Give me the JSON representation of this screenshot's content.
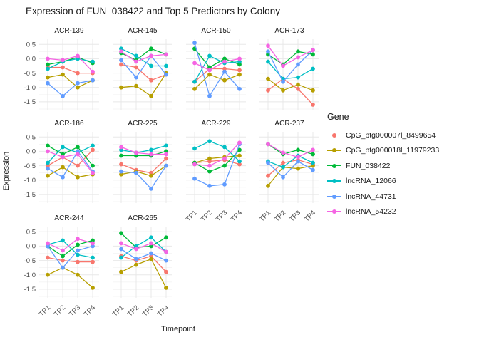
{
  "page": {
    "background": "#ffffff"
  },
  "chart_data": {
    "type": "line",
    "title": "Expression of FUN_038422 and Top 5 Predictors by Colony",
    "xlabel": "Timepoint",
    "ylabel": "Expression",
    "legend_title": "Gene",
    "legend_position": "right",
    "grid": true,
    "x": [
      "TP1",
      "TP2",
      "TP3",
      "TP4"
    ],
    "ytick_labels": [
      "0.5",
      "0.0",
      "-0.5",
      "-1.0",
      "-1.5"
    ],
    "ytick_values": [
      0.5,
      0.0,
      -0.5,
      -1.0,
      -1.5
    ],
    "ylim": [
      -1.8,
      0.68
    ],
    "genes": [
      {
        "name": "CpG_ptg000007l_8499654",
        "color": "#F8766D"
      },
      {
        "name": "CpG_ptg000018l_11979233",
        "color": "#B79F00"
      },
      {
        "name": "FUN_038422",
        "color": "#00BA38"
      },
      {
        "name": "lncRNA_12066",
        "color": "#00BFC4"
      },
      {
        "name": "lncRNA_44731",
        "color": "#619CFF"
      },
      {
        "name": "lncRNA_54232",
        "color": "#F564E3"
      }
    ],
    "facets": [
      {
        "colony": "ACR-139",
        "values": [
          [
            -0.3,
            -0.3,
            -0.5,
            -0.5
          ],
          [
            -0.65,
            -0.55,
            -1.0,
            -0.75
          ],
          [
            -0.2,
            -0.1,
            0.05,
            -0.15
          ],
          [
            -0.35,
            -0.1,
            0.0,
            -0.1
          ],
          [
            -0.85,
            -1.3,
            -0.85,
            -0.75
          ],
          [
            0.0,
            -0.05,
            0.1,
            -0.45
          ]
        ]
      },
      {
        "colony": "ACR-145",
        "values": [
          [
            -0.2,
            -0.3,
            -0.75,
            -0.55
          ],
          [
            -1.0,
            -0.95,
            -1.3,
            -0.5
          ],
          [
            0.2,
            -0.05,
            0.35,
            0.15
          ],
          [
            0.35,
            0.1,
            -0.25,
            -0.25
          ],
          [
            -0.05,
            -0.65,
            0.1,
            -0.55
          ],
          [
            0.25,
            -0.1,
            0.1,
            0.15
          ]
        ]
      },
      {
        "colony": "ACR-150",
        "values": [
          [
            -0.8,
            -0.35,
            -0.35,
            -0.4
          ],
          [
            -1.05,
            -0.55,
            -0.75,
            -0.55
          ],
          [
            0.35,
            -0.3,
            0.0,
            -0.2
          ],
          [
            -0.8,
            0.1,
            -0.15,
            -0.1
          ],
          [
            0.55,
            -1.3,
            -0.45,
            -1.05
          ],
          [
            -0.15,
            -0.4,
            -0.1,
            0.0
          ]
        ]
      },
      {
        "colony": "ACR-173",
        "values": [
          [
            -1.1,
            -0.7,
            -1.05,
            -1.6
          ],
          [
            -0.7,
            -1.1,
            -0.9,
            -1.1
          ],
          [
            0.15,
            -0.2,
            0.25,
            0.15
          ],
          [
            -0.1,
            -0.7,
            -0.65,
            -0.35
          ],
          [
            0.25,
            -0.8,
            -0.2,
            0.3
          ],
          [
            0.45,
            -0.25,
            0.05,
            0.3
          ]
        ]
      },
      {
        "colony": "ACR-186",
        "values": [
          [
            -0.5,
            -0.2,
            -0.5,
            0.05
          ],
          [
            -0.85,
            -0.55,
            -0.9,
            -0.8
          ],
          [
            0.2,
            -0.1,
            0.15,
            -0.5
          ],
          [
            -0.4,
            0.15,
            -0.05,
            0.2
          ],
          [
            -0.6,
            -0.9,
            0.0,
            -0.7
          ],
          [
            0.0,
            -0.2,
            -0.1,
            -0.75
          ]
        ]
      },
      {
        "colony": "ACR-225",
        "values": [
          [
            -0.45,
            -0.65,
            -0.75,
            -0.25
          ],
          [
            -0.8,
            -0.7,
            -0.85,
            -0.5
          ],
          [
            -0.15,
            -0.15,
            -0.15,
            0.0
          ],
          [
            0.05,
            -0.05,
            0.05,
            0.2
          ],
          [
            -0.7,
            -0.75,
            -1.3,
            -0.5
          ],
          [
            0.15,
            -0.05,
            -0.1,
            -0.1
          ]
        ]
      },
      {
        "colony": "ACR-229",
        "values": [
          [
            -0.4,
            -0.35,
            -0.3,
            -0.45
          ],
          [
            -0.4,
            -0.25,
            -0.2,
            -0.15
          ],
          [
            -0.4,
            -0.7,
            -0.5,
            0.05
          ],
          [
            0.1,
            0.35,
            0.15,
            -0.35
          ],
          [
            -0.95,
            -1.2,
            -1.15,
            0.25
          ],
          [
            -0.45,
            -0.5,
            -0.25,
            0.3
          ]
        ]
      },
      {
        "colony": "ACR-237",
        "values": [
          [
            -0.85,
            -0.4,
            -0.3,
            -0.45
          ],
          [
            -1.2,
            -0.55,
            -0.6,
            -0.5
          ],
          [
            0.25,
            -0.1,
            0.05,
            -0.1
          ],
          [
            -0.35,
            -0.55,
            -0.15,
            -0.4
          ],
          [
            -0.4,
            -0.9,
            -0.35,
            -0.65
          ],
          [
            0.25,
            -0.05,
            -0.2,
            0.05
          ]
        ]
      },
      {
        "colony": "ACR-244",
        "values": [
          [
            -0.4,
            -0.5,
            -0.55,
            -0.55
          ],
          [
            -1.0,
            -0.75,
            -1.0,
            -1.45
          ],
          [
            0.0,
            -0.35,
            0.05,
            0.2
          ],
          [
            0.05,
            0.2,
            -0.3,
            -0.4
          ],
          [
            0.0,
            -0.75,
            -0.15,
            0.0
          ],
          [
            0.1,
            -0.15,
            0.25,
            0.1
          ]
        ]
      },
      {
        "colony": "ACR-265",
        "values": [
          [
            -0.35,
            -0.5,
            -0.35,
            -0.9
          ],
          [
            -0.9,
            -0.65,
            -0.45,
            -1.45
          ],
          [
            0.45,
            -0.05,
            0.0,
            0.3
          ],
          [
            -0.4,
            0.0,
            0.3,
            -0.2
          ],
          [
            -0.1,
            -0.45,
            -0.25,
            -0.5
          ],
          [
            0.1,
            -0.1,
            0.1,
            -0.2
          ]
        ]
      }
    ]
  }
}
